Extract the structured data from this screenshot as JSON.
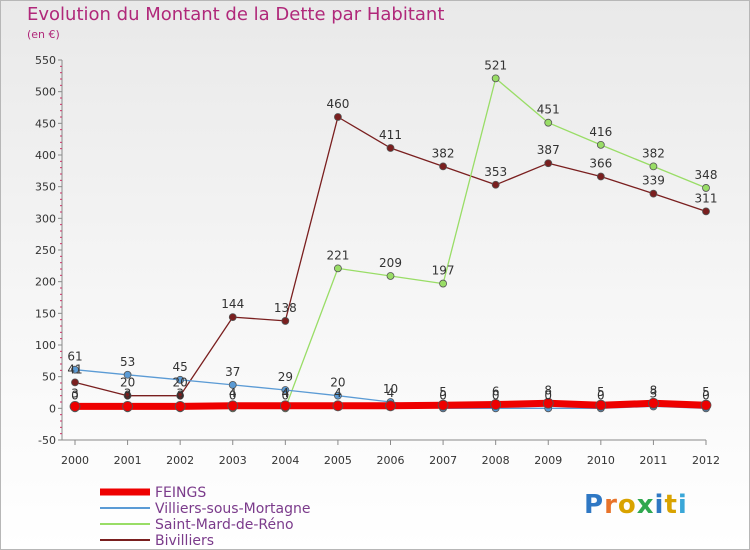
{
  "title": "Evolution du Montant de la Dette par Habitant",
  "unit_label": "(en €)",
  "logo_text": "Proxiti",
  "chart_data": {
    "type": "line",
    "x": [
      "2000",
      "2001",
      "2002",
      "2003",
      "2004",
      "2005",
      "2006",
      "2007",
      "2008",
      "2009",
      "2010",
      "2011",
      "2012"
    ],
    "ylim": [
      -50,
      550
    ],
    "yticks": [
      -50,
      0,
      50,
      100,
      150,
      200,
      250,
      300,
      350,
      400,
      450,
      500,
      550
    ],
    "grid": false,
    "legend_position": "bottom-left",
    "series": [
      {
        "name": "FEINGS",
        "color": "#ee0000",
        "values": [
          3,
          3,
          3,
          4,
          4,
          4,
          4,
          5,
          6,
          8,
          5,
          8,
          5
        ],
        "labels": [
          "3",
          "3",
          "3",
          "4",
          "4",
          "4",
          "4",
          "5",
          "6",
          "8",
          "5",
          "8",
          "5"
        ]
      },
      {
        "name": "Villiers-sous-Mortagne",
        "color": "#5b9bd5",
        "values": [
          61,
          53,
          45,
          37,
          29,
          20,
          10,
          0,
          0,
          0,
          0,
          3,
          0
        ],
        "labels": [
          "61",
          "53",
          "45",
          "37",
          "29",
          "20",
          "10",
          "0",
          "0",
          "0",
          "0",
          "3",
          "0"
        ]
      },
      {
        "name": "Saint-Mard-de-Réno",
        "color": "#99dd66",
        "values": [
          0,
          0,
          0,
          0,
          0,
          221,
          209,
          197,
          521,
          451,
          416,
          382,
          348
        ],
        "labels": [
          "0",
          "0",
          "0",
          "0",
          "0",
          "221",
          "209",
          "197",
          "521",
          "451",
          "416",
          "382",
          "348"
        ]
      },
      {
        "name": "Bivilliers",
        "color": "#7a1f1f",
        "values": [
          41,
          20,
          20,
          144,
          138,
          460,
          411,
          382,
          353,
          387,
          366,
          339,
          311
        ],
        "labels": [
          "41",
          "20",
          "20",
          "144",
          "138",
          "460",
          "411",
          "382",
          "353",
          "387",
          "366",
          "339",
          "311"
        ]
      }
    ]
  }
}
